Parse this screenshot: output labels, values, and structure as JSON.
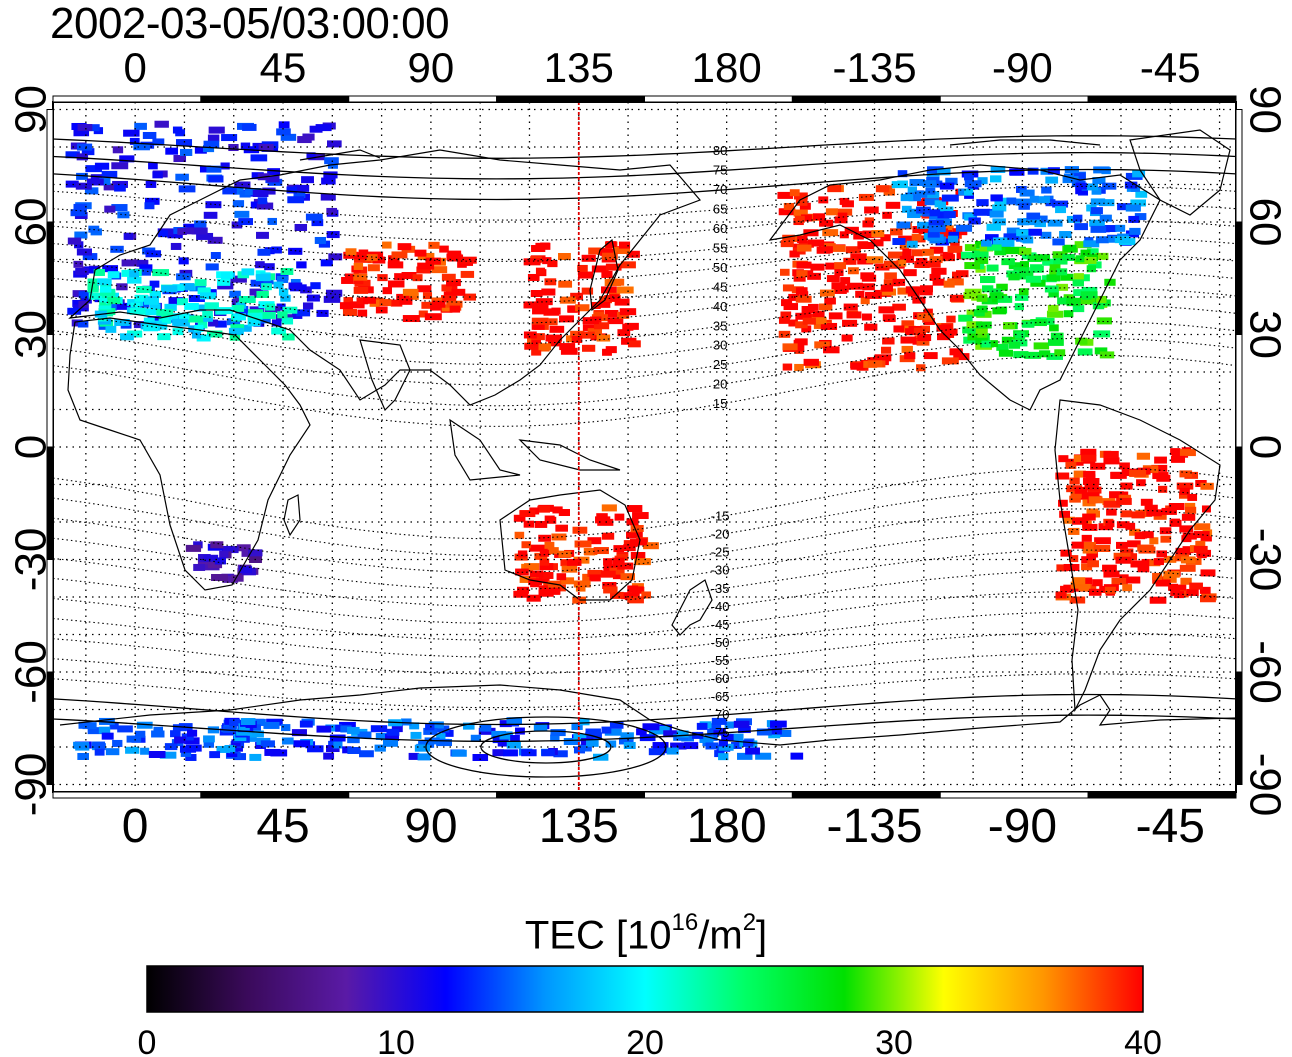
{
  "title": "2002-03-05/03:00:00",
  "map": {
    "lon_ticks_top": [
      "0",
      "45",
      "90",
      "135",
      "180",
      "-135",
      "-90",
      "-45"
    ],
    "lon_ticks_bottom": [
      "0",
      "45",
      "90",
      "135",
      "180",
      "-135",
      "-90",
      "-45"
    ],
    "lat_ticks_left": [
      "90",
      "60",
      "30",
      "0",
      "-30",
      "-60",
      "-90"
    ],
    "lat_ticks_right": [
      "90",
      "60",
      "30",
      "0",
      "-30",
      "-60",
      "-90"
    ],
    "lon_range": [
      -25,
      335
    ],
    "lat_range": [
      -92,
      92
    ],
    "subsolar_meridian_lon": 135,
    "magnetic_lat_labels_north": [
      "80",
      "75",
      "70",
      "65",
      "60",
      "55",
      "50",
      "45",
      "40",
      "35",
      "30",
      "25",
      "20",
      "15"
    ],
    "magnetic_lat_labels_south": [
      "-15",
      "-20",
      "-25",
      "-30",
      "-35",
      "-40",
      "-45",
      "-50",
      "-55",
      "-60",
      "-65",
      "-70",
      "-75"
    ],
    "grid": "dotted"
  },
  "colorbar": {
    "label_main": "TEC  [10",
    "label_exp1": "16",
    "label_mid": "/m",
    "label_exp2": "2",
    "label_end": "]",
    "ticks": [
      "0",
      "10",
      "20",
      "30",
      "40"
    ],
    "range": [
      0,
      40
    ],
    "colors": [
      "#000000",
      "#3a0a5a",
      "#5a1aa6",
      "#0000ff",
      "#0096ff",
      "#00ffff",
      "#00ff66",
      "#00e000",
      "#ffff00",
      "#ff9600",
      "#ff0000"
    ]
  },
  "tec_regions": [
    {
      "name": "europe",
      "lon": [
        -22,
        60
      ],
      "lat": [
        33,
        88
      ],
      "value": 12
    },
    {
      "name": "europe-south",
      "lon": [
        -15,
        45
      ],
      "lat": [
        30,
        48
      ],
      "value": 20
    },
    {
      "name": "east-asia",
      "lon": [
        118,
        150
      ],
      "lat": [
        26,
        55
      ],
      "value": 40
    },
    {
      "name": "north-america-west",
      "lon": [
        -165,
        -110
      ],
      "lat": [
        22,
        70
      ],
      "value": 40
    },
    {
      "name": "north-america-east",
      "lon": [
        -110,
        -65
      ],
      "lat": [
        25,
        55
      ],
      "value": 27
    },
    {
      "name": "canada",
      "lon": [
        -130,
        -55
      ],
      "lat": [
        55,
        75
      ],
      "value": 15
    },
    {
      "name": "central-asia",
      "lon": [
        60,
        100
      ],
      "lat": [
        35,
        55
      ],
      "value": 40
    },
    {
      "name": "south-america",
      "lon": [
        -80,
        -35
      ],
      "lat": [
        -40,
        0
      ],
      "value": 40
    },
    {
      "name": "australia",
      "lon": [
        115,
        155
      ],
      "lat": [
        -40,
        -15
      ],
      "value": 40
    },
    {
      "name": "southern-africa",
      "lon": [
        15,
        35
      ],
      "lat": [
        -35,
        -25
      ],
      "value": 9
    },
    {
      "name": "antarctica",
      "lon": [
        -20,
        200
      ],
      "lat": [
        -82,
        -72
      ],
      "value": 14
    }
  ]
}
